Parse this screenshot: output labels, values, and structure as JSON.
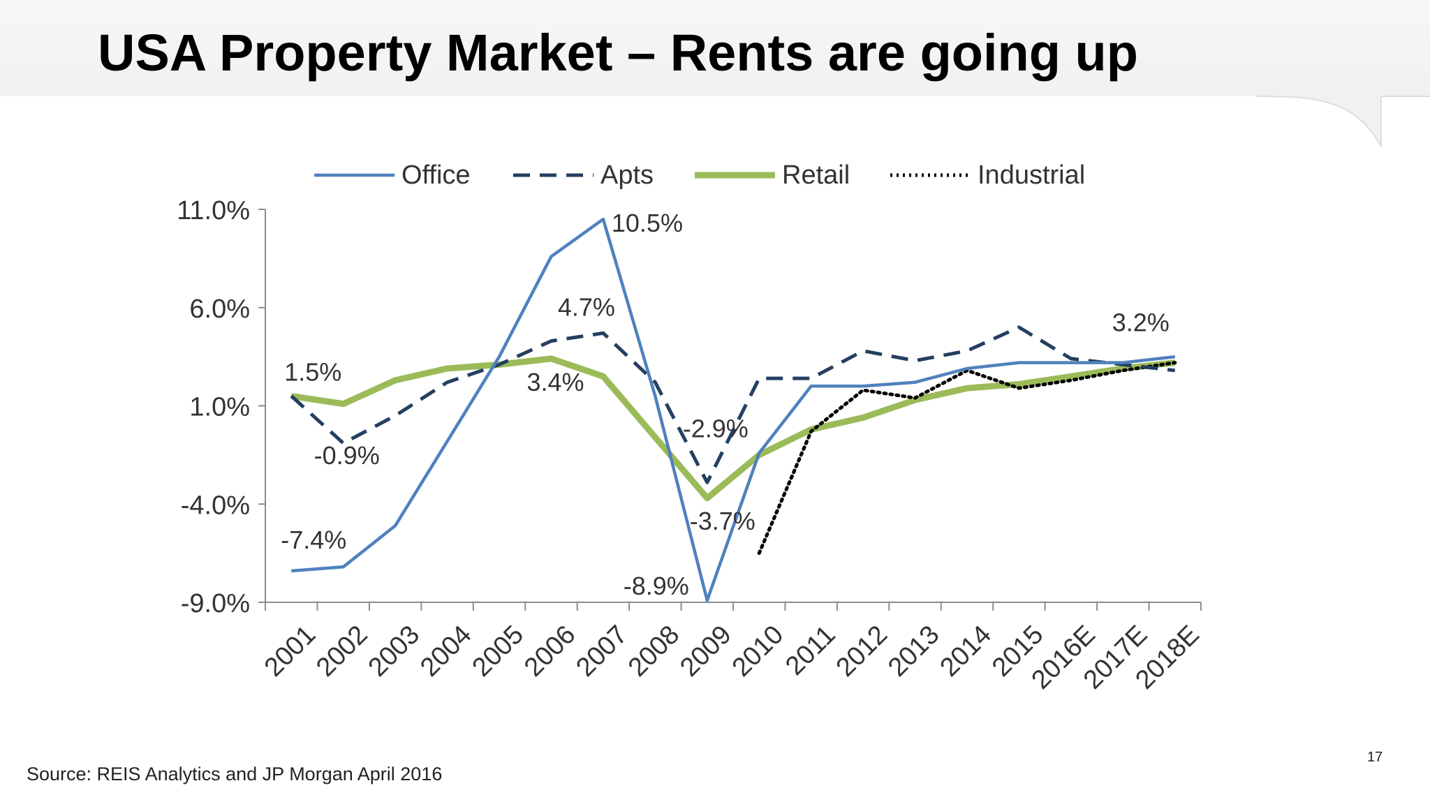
{
  "slide": {
    "title": "USA Property Market –  Rents are going up",
    "source": "Source: REIS Analytics and JP Morgan April 2016",
    "page_number": "17"
  },
  "chart_data": {
    "type": "line",
    "title": "",
    "xlabel": "",
    "ylabel": "",
    "categories": [
      "2001",
      "2002",
      "2003",
      "2004",
      "2005",
      "2006",
      "2007",
      "2008",
      "2009",
      "2010",
      "2011",
      "2012",
      "2013",
      "2014",
      "2015",
      "2016E",
      "2017E",
      "2018E"
    ],
    "ylim": [
      -9.0,
      11.0
    ],
    "yticks": [
      -9.0,
      -4.0,
      1.0,
      6.0,
      11.0
    ],
    "ytick_labels": [
      "-9.0%",
      "-4.0%",
      "1.0%",
      "6.0%",
      "11.0%"
    ],
    "legend_position": "top",
    "grid": false,
    "series": [
      {
        "name": "Office",
        "color": "#4f81bd",
        "style": "solid",
        "values": [
          -7.4,
          -7.2,
          -5.1,
          -0.8,
          3.5,
          8.6,
          10.5,
          1.5,
          -8.9,
          -1.4,
          2.0,
          2.0,
          2.2,
          2.9,
          3.2,
          3.2,
          3.2,
          3.5
        ]
      },
      {
        "name": "Apts",
        "color": "#243f60",
        "style": "dashed",
        "values": [
          1.5,
          -0.9,
          0.5,
          2.2,
          3.1,
          4.3,
          4.7,
          2.2,
          -2.9,
          2.4,
          2.4,
          3.8,
          3.3,
          3.8,
          5.0,
          3.4,
          3.1,
          2.8
        ]
      },
      {
        "name": "Retail",
        "color": "#9bbb59",
        "style": "solid-thick",
        "values": [
          1.5,
          1.1,
          2.3,
          2.9,
          3.1,
          3.4,
          2.5,
          -0.6,
          -3.7,
          -1.5,
          -0.2,
          0.4,
          1.3,
          1.9,
          2.1,
          2.5,
          2.9,
          3.2
        ]
      },
      {
        "name": "Industrial",
        "color": "#000000",
        "style": "dotted",
        "values": [
          null,
          null,
          null,
          null,
          null,
          null,
          null,
          null,
          null,
          -6.5,
          -0.3,
          1.8,
          1.4,
          2.8,
          1.9,
          2.3,
          2.8,
          3.2
        ]
      }
    ],
    "annotations": [
      {
        "text": "1.5%",
        "series": "Apts",
        "category": "2001"
      },
      {
        "text": "-0.9%",
        "series": "Apts",
        "category": "2002"
      },
      {
        "text": "-7.4%",
        "series": "Office",
        "category": "2001"
      },
      {
        "text": "10.5%",
        "series": "Office",
        "category": "2007"
      },
      {
        "text": "4.7%",
        "series": "Apts",
        "category": "2007"
      },
      {
        "text": "3.4%",
        "series": "Retail",
        "category": "2006"
      },
      {
        "text": "-2.9%",
        "series": "Apts",
        "category": "2009"
      },
      {
        "text": "-3.7%",
        "series": "Retail",
        "category": "2009"
      },
      {
        "text": "-8.9%",
        "series": "Office",
        "category": "2009"
      },
      {
        "text": "3.2%",
        "series": "Retail",
        "category": "2018E"
      }
    ]
  }
}
